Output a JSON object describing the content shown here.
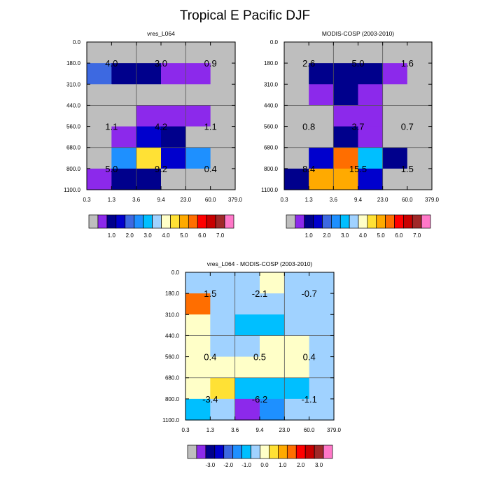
{
  "figure": {
    "title": "Tropical E Pacific DJF"
  },
  "chart_data": [
    {
      "type": "heatmap",
      "title": "vres_L064",
      "xticks": [
        "0.3",
        "1.3",
        "3.6",
        "9.4",
        "23.0",
        "60.0",
        "379.0"
      ],
      "yticks": [
        "0.0",
        "180.0",
        "310.0",
        "440.0",
        "560.0",
        "680.0",
        "800.0",
        "1100.0"
      ],
      "cell_colors": [
        [
          "#bebebe",
          "#bebebe",
          "#bebebe",
          "#bebebe",
          "#bebebe",
          "#bebebe"
        ],
        [
          "#3d69e1",
          "#00008c",
          "#00008c",
          "#8c29eb",
          "#8c29eb",
          "#bebebe"
        ],
        [
          "#bebebe",
          "#bebebe",
          "#bebebe",
          "#bebebe",
          "#bebebe",
          "#bebebe"
        ],
        [
          "#bebebe",
          "#bebebe",
          "#8c29eb",
          "#8c29eb",
          "#8c29eb",
          "#bebebe"
        ],
        [
          "#bebebe",
          "#8c29eb",
          "#0000cd",
          "#00008c",
          "#bebebe",
          "#bebebe"
        ],
        [
          "#bebebe",
          "#1e90ff",
          "#ffe135",
          "#0000cd",
          "#1e90ff",
          "#bebebe"
        ],
        [
          "#8c29eb",
          "#00008c",
          "#00008c",
          "#bebebe",
          "#bebebe",
          "#bebebe"
        ]
      ],
      "annotations": [
        {
          "text": "4.0",
          "col": 1,
          "row": 1
        },
        {
          "text": "3.0",
          "col": 3,
          "row": 1
        },
        {
          "text": "0.9",
          "col": 5,
          "row": 1
        },
        {
          "text": "1.1",
          "col": 1,
          "row": 4
        },
        {
          "text": "4.2",
          "col": 3,
          "row": 4
        },
        {
          "text": "1.1",
          "col": 5,
          "row": 4
        },
        {
          "text": "5.0",
          "col": 1,
          "row": 6
        },
        {
          "text": "9.2",
          "col": 3,
          "row": 6
        },
        {
          "text": "0.4",
          "col": 5,
          "row": 6
        }
      ],
      "colorbar": {
        "colors": [
          "#bebebe",
          "#8c29eb",
          "#00008c",
          "#0000cd",
          "#3d69e1",
          "#1e90ff",
          "#00bfff",
          "#a0d2ff",
          "#ffffc8",
          "#ffe135",
          "#ffaa00",
          "#ff6e00",
          "#ff0000",
          "#c80000",
          "#a02828",
          "#ff78c8"
        ],
        "labels": [
          "1.0",
          "2.0",
          "3.0",
          "4.0",
          "5.0",
          "6.0",
          "7.0"
        ]
      }
    },
    {
      "type": "heatmap",
      "title": "MODIS-COSP (2003-2010)",
      "xticks": [
        "0.3",
        "1.3",
        "3.6",
        "9.4",
        "23.0",
        "60.0",
        "379.0"
      ],
      "yticks": [
        "0.0",
        "180.0",
        "310.0",
        "440.0",
        "560.0",
        "680.0",
        "800.0",
        "1100.0"
      ],
      "cell_colors": [
        [
          "#bebebe",
          "#bebebe",
          "#bebebe",
          "#bebebe",
          "#bebebe",
          "#bebebe"
        ],
        [
          "#bebebe",
          "#00008c",
          "#00008c",
          "#00008c",
          "#8c29eb",
          "#bebebe"
        ],
        [
          "#bebebe",
          "#8c29eb",
          "#00008c",
          "#8c29eb",
          "#bebebe",
          "#bebebe"
        ],
        [
          "#bebebe",
          "#bebebe",
          "#8c29eb",
          "#8c29eb",
          "#bebebe",
          "#bebebe"
        ],
        [
          "#bebebe",
          "#bebebe",
          "#00008c",
          "#8c29eb",
          "#bebebe",
          "#bebebe"
        ],
        [
          "#bebebe",
          "#0000cd",
          "#ff6e00",
          "#00bfff",
          "#00008c",
          "#bebebe"
        ],
        [
          "#00008c",
          "#ffaa00",
          "#ffaa00",
          "#0000cd",
          "#bebebe",
          "#bebebe"
        ]
      ],
      "annotations": [
        {
          "text": "2.6",
          "col": 1,
          "row": 1
        },
        {
          "text": "5.0",
          "col": 3,
          "row": 1
        },
        {
          "text": "1.6",
          "col": 5,
          "row": 1
        },
        {
          "text": "0.8",
          "col": 1,
          "row": 4
        },
        {
          "text": "3.7",
          "col": 3,
          "row": 4
        },
        {
          "text": "0.7",
          "col": 5,
          "row": 4
        },
        {
          "text": "8.4",
          "col": 1,
          "row": 6
        },
        {
          "text": "15.5",
          "col": 3,
          "row": 6
        },
        {
          "text": "1.5",
          "col": 5,
          "row": 6
        }
      ],
      "colorbar": {
        "colors": [
          "#bebebe",
          "#8c29eb",
          "#00008c",
          "#0000cd",
          "#3d69e1",
          "#1e90ff",
          "#00bfff",
          "#a0d2ff",
          "#ffffc8",
          "#ffe135",
          "#ffaa00",
          "#ff6e00",
          "#ff0000",
          "#c80000",
          "#a02828",
          "#ff78c8"
        ],
        "labels": [
          "1.0",
          "2.0",
          "3.0",
          "4.0",
          "5.0",
          "6.0",
          "7.0"
        ]
      }
    },
    {
      "type": "heatmap",
      "title": "vres_L064 - MODIS-COSP (2003-2010)",
      "xticks": [
        "0.3",
        "1.3",
        "3.6",
        "9.4",
        "23.0",
        "60.0",
        "379.0"
      ],
      "yticks": [
        "0.0",
        "180.0",
        "310.0",
        "440.0",
        "560.0",
        "680.0",
        "800.0",
        "1100.0"
      ],
      "cell_colors": [
        [
          "#a0d2ff",
          "#a0d2ff",
          "#a0d2ff",
          "#ffffc8",
          "#a0d2ff",
          "#a0d2ff"
        ],
        [
          "#ff6e00",
          "#a0d2ff",
          "#a0d2ff",
          "#a0d2ff",
          "#a0d2ff",
          "#a0d2ff"
        ],
        [
          "#ffffc8",
          "#a0d2ff",
          "#00bfff",
          "#00bfff",
          "#a0d2ff",
          "#a0d2ff"
        ],
        [
          "#ffffc8",
          "#a0d2ff",
          "#a0d2ff",
          "#ffffc8",
          "#ffffc8",
          "#a0d2ff"
        ],
        [
          "#ffffc8",
          "#ffffc8",
          "#ffffc8",
          "#ffffc8",
          "#ffffc8",
          "#a0d2ff"
        ],
        [
          "#ffffc8",
          "#ffe135",
          "#00bfff",
          "#00bfff",
          "#00bfff",
          "#a0d2ff"
        ],
        [
          "#00bfff",
          "#a0d2ff",
          "#8c29eb",
          "#1e90ff",
          "#a0d2ff",
          "#a0d2ff"
        ]
      ],
      "annotations": [
        {
          "text": "1.5",
          "col": 1,
          "row": 1
        },
        {
          "text": "-2.1",
          "col": 3,
          "row": 1
        },
        {
          "text": "-0.7",
          "col": 5,
          "row": 1
        },
        {
          "text": "0.4",
          "col": 1,
          "row": 4
        },
        {
          "text": "0.5",
          "col": 3,
          "row": 4
        },
        {
          "text": "0.4",
          "col": 5,
          "row": 4
        },
        {
          "text": "-3.4",
          "col": 1,
          "row": 6
        },
        {
          "text": "-6.2",
          "col": 3,
          "row": 6
        },
        {
          "text": "-1.1",
          "col": 5,
          "row": 6
        }
      ],
      "colorbar": {
        "colors": [
          "#bebebe",
          "#8c29eb",
          "#00008c",
          "#0000cd",
          "#3d69e1",
          "#1e90ff",
          "#00bfff",
          "#a0d2ff",
          "#ffffc8",
          "#ffe135",
          "#ffaa00",
          "#ff6e00",
          "#ff0000",
          "#c80000",
          "#a02828",
          "#ff78c8"
        ],
        "labels": [
          "-3.0",
          "-2.0",
          "-1.0",
          "0.0",
          "1.0",
          "2.0",
          "3.0"
        ]
      }
    }
  ]
}
